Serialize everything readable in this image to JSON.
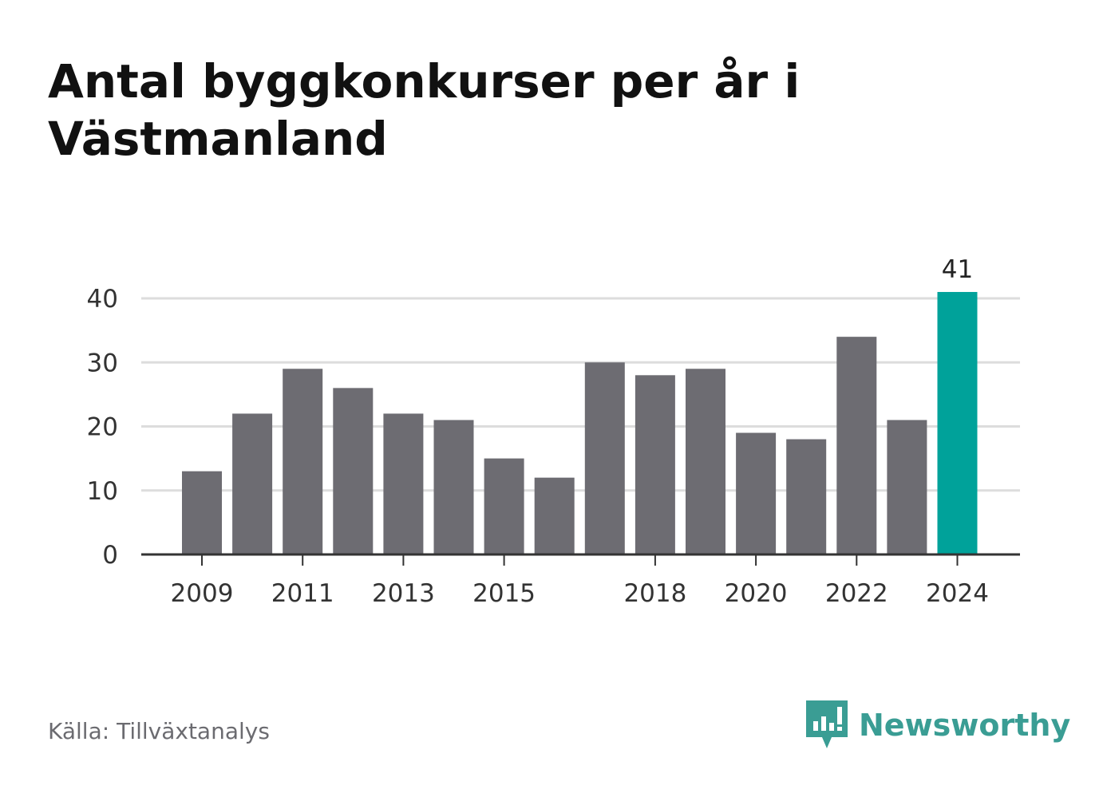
{
  "title": "Antal byggkonkurser per år i Västmanland",
  "source": "Källa: Tillväxtanalys",
  "brand": {
    "name": "Newsworthy",
    "icon": "newsworthy-logo-icon",
    "color": "#3a9d94"
  },
  "chart_data": {
    "type": "bar",
    "title": "Antal byggkonkurser per år i Västmanland",
    "xlabel": "",
    "ylabel": "",
    "categories": [
      "2009",
      "2010",
      "2011",
      "2012",
      "2013",
      "2014",
      "2015",
      "2016",
      "2017",
      "2018",
      "2019",
      "2020",
      "2021",
      "2022",
      "2023",
      "2024"
    ],
    "values": [
      13,
      22,
      29,
      26,
      22,
      21,
      15,
      12,
      30,
      28,
      29,
      19,
      18,
      34,
      21,
      41
    ],
    "x_tick_labels": [
      "2009",
      "2011",
      "2013",
      "2015",
      "2018",
      "2020",
      "2022",
      "2024"
    ],
    "y_ticks": [
      0,
      10,
      20,
      30,
      40
    ],
    "ylim": [
      0,
      41
    ],
    "grid": true,
    "highlight": {
      "category": "2024",
      "label": "41"
    },
    "colors": {
      "bar": "#6d6c72",
      "highlight": "#00a29a",
      "grid": "#dddddd",
      "axis": "#333333"
    }
  }
}
